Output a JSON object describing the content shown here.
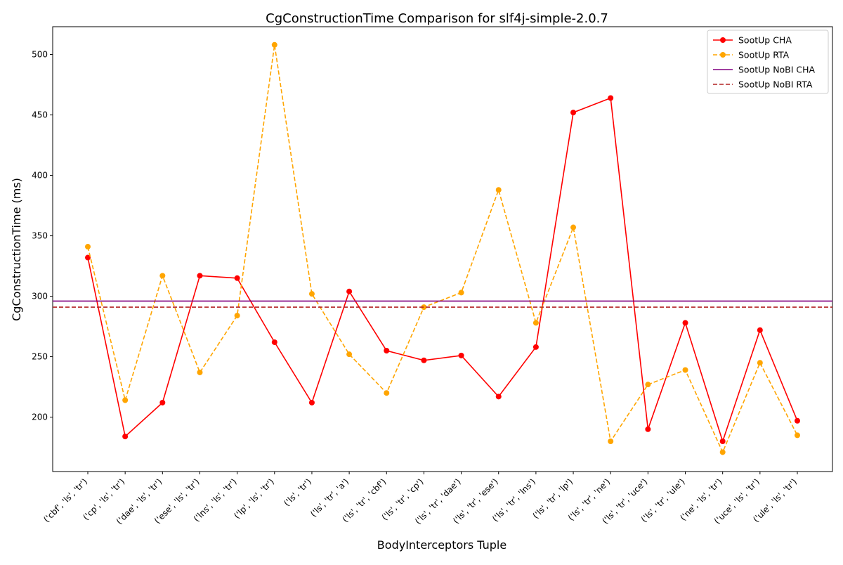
{
  "chart_data": {
    "type": "line",
    "title": "CgConstructionTime Comparison for slf4j-simple-2.0.7",
    "xlabel": "BodyInterceptors Tuple",
    "ylabel": "CgConstructionTime (ms)",
    "ylim": [
      155,
      523
    ],
    "yticks": [
      200,
      250,
      300,
      350,
      400,
      450,
      500
    ],
    "grid": false,
    "legend_position": "top-right",
    "categories": [
      "('cbf', 'ls', 'tr')",
      "('cp', 'ls', 'tr')",
      "('dae', 'ls', 'tr')",
      "('ese', 'ls', 'tr')",
      "('lns', 'ls', 'tr')",
      "('lp', 'ls', 'tr')",
      "('ls', 'tr')",
      "('ls', 'tr', 'a')",
      "('ls', 'tr', 'cbf')",
      "('ls', 'tr', 'cp')",
      "('ls', 'tr', 'dae')",
      "('ls', 'tr', 'ese')",
      "('ls', 'tr', 'lns')",
      "('ls', 'tr', 'lp')",
      "('ls', 'tr', 'ne')",
      "('ls', 'tr', 'uce')",
      "('ls', 'tr', 'ule')",
      "('ne', 'ls', 'tr')",
      "('uce', 'ls', 'tr')",
      "('ule', 'ls', 'tr')"
    ],
    "series": [
      {
        "name": "SootUp CHA",
        "color": "#ff0000",
        "style": "solid",
        "marker": "circle",
        "values": [
          332,
          184,
          212,
          317,
          315,
          262,
          212,
          304,
          255,
          247,
          251,
          217,
          258,
          452,
          464,
          190,
          278,
          180,
          272,
          197
        ]
      },
      {
        "name": "SootUp RTA",
        "color": "#ffa500",
        "style": "dashed",
        "marker": "circle",
        "values": [
          341,
          214,
          317,
          237,
          284,
          508,
          302,
          252,
          220,
          291,
          303,
          388,
          278,
          357,
          180,
          227,
          239,
          171,
          245,
          185
        ]
      },
      {
        "name": "SootUp NoBI CHA",
        "color": "#800080",
        "style": "solid",
        "marker": "none",
        "constant": 296
      },
      {
        "name": "SootUp NoBI RTA",
        "color": "#b22222",
        "style": "dashed",
        "marker": "none",
        "constant": 291
      }
    ]
  }
}
